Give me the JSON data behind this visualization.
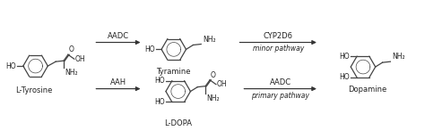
{
  "figsize": [
    4.74,
    1.56
  ],
  "dpi": 100,
  "bg_color": "#ffffff",
  "text_color": "#222222",
  "line_color": "#444444",
  "labels": {
    "l_tyrosine": "L-Tyrosine",
    "tyramine": "Tyramine",
    "l_dopa": "L-DOPA",
    "dopamine": "Dopamine",
    "aadc_top": "AADC",
    "aah": "AAH",
    "cyp2d6": "CYP2D6",
    "aadc_bot": "AADC",
    "minor": "minor pathway",
    "primary": "primary pathway"
  },
  "arrow_color": "#333333"
}
